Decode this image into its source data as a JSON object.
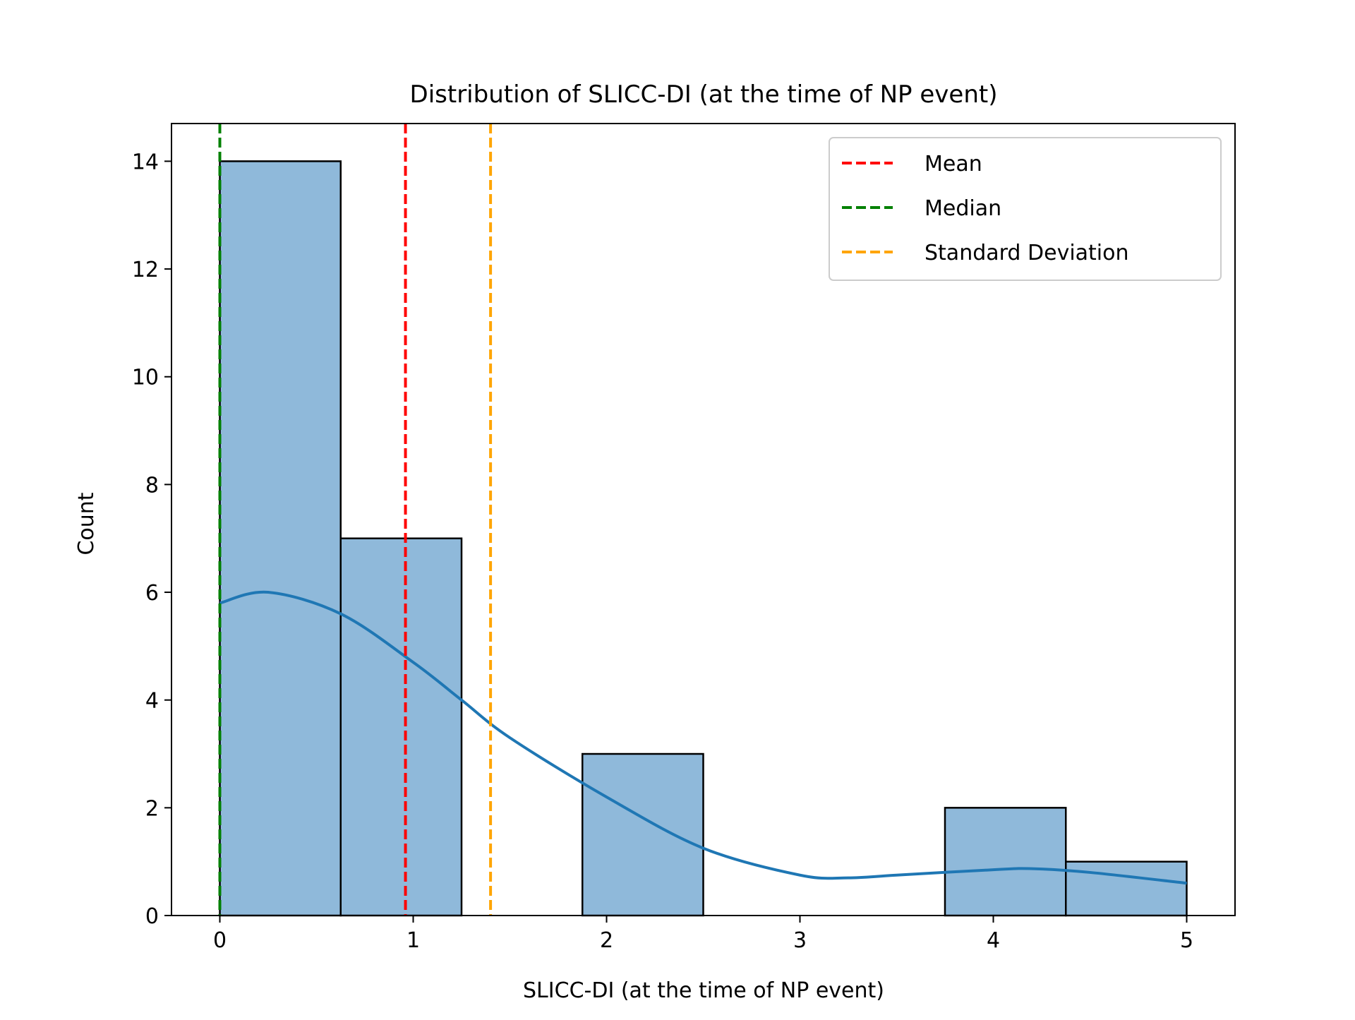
{
  "chart_data": {
    "type": "bar",
    "title": "Distribution of SLICC-DI (at the time of NP event)",
    "xlabel": "SLICC-DI (at the time of NP event)",
    "ylabel": "Count",
    "xlim": [
      -0.25,
      5.25
    ],
    "ylim": [
      0,
      14.7
    ],
    "xticks": [
      0,
      1,
      2,
      3,
      4,
      5
    ],
    "yticks": [
      0,
      2,
      4,
      6,
      8,
      10,
      12,
      14
    ],
    "bins": [
      {
        "x0": 0.0,
        "x1": 0.625,
        "count": 14
      },
      {
        "x0": 0.625,
        "x1": 1.25,
        "count": 7
      },
      {
        "x0": 1.25,
        "x1": 1.875,
        "count": 0
      },
      {
        "x0": 1.875,
        "x1": 2.5,
        "count": 3
      },
      {
        "x0": 2.5,
        "x1": 3.125,
        "count": 0
      },
      {
        "x0": 3.125,
        "x1": 3.75,
        "count": 0
      },
      {
        "x0": 3.75,
        "x1": 4.375,
        "count": 2
      },
      {
        "x0": 4.375,
        "x1": 5.0,
        "count": 1
      }
    ],
    "kde": {
      "x": [
        0.0,
        0.25,
        0.625,
        1.0,
        1.25,
        1.5,
        2.0,
        2.5,
        3.0,
        3.25,
        3.5,
        4.0,
        4.2,
        4.5,
        5.0
      ],
      "y": [
        5.8,
        6.0,
        5.6,
        4.7,
        4.0,
        3.3,
        2.2,
        1.25,
        0.75,
        0.7,
        0.75,
        0.85,
        0.87,
        0.8,
        0.6
      ],
      "color": "#1f77b4"
    },
    "reference_lines": [
      {
        "name": "Mean",
        "x": 0.96,
        "color": "#ff0000"
      },
      {
        "name": "Median",
        "x": 0.0,
        "color": "#008000"
      },
      {
        "name": "Standard Deviation",
        "x": 1.4,
        "color": "#ffa500"
      }
    ],
    "bar_color": "#8fb9da",
    "grid": false,
    "legend_position": "top-right"
  }
}
